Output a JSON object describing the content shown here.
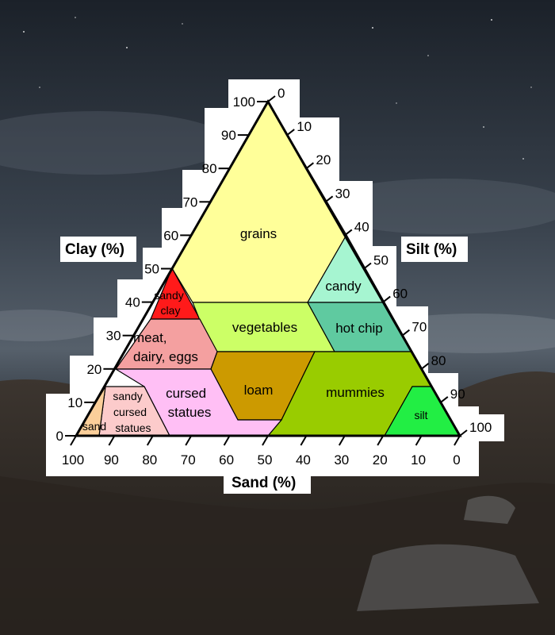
{
  "diagram": {
    "axes": {
      "clay": {
        "title": "Clay (%)",
        "ticks": [
          "0",
          "10",
          "20",
          "30",
          "40",
          "50",
          "60",
          "70",
          "80",
          "90",
          "100"
        ]
      },
      "silt": {
        "title": "Silt (%)",
        "ticks": [
          "0",
          "10",
          "20",
          "30",
          "40",
          "50",
          "60",
          "70",
          "80",
          "90",
          "100"
        ]
      },
      "sand": {
        "title": "Sand (%)",
        "ticks": [
          "100",
          "90",
          "80",
          "70",
          "60",
          "50",
          "40",
          "30",
          "20",
          "10",
          "0"
        ]
      }
    },
    "regions": [
      {
        "key": "grains",
        "label_lines": [
          "grains"
        ],
        "color": "#ffff99"
      },
      {
        "key": "candy",
        "label_lines": [
          "candy"
        ],
        "color": "#a6f5d1"
      },
      {
        "key": "sandy_clay",
        "label_lines": [
          "sandy",
          "clay"
        ],
        "color": "#ff1a1a"
      },
      {
        "key": "vegetables",
        "label_lines": [
          "vegetables"
        ],
        "color": "#ccff66"
      },
      {
        "key": "hot_chip",
        "label_lines": [
          "hot chip"
        ],
        "color": "#5fcaa0"
      },
      {
        "key": "meat_dairy_eggs",
        "label_lines": [
          "meat,",
          "dairy, eggs"
        ],
        "color": "#f4a0a0"
      },
      {
        "key": "loam",
        "label_lines": [
          "loam"
        ],
        "color": "#cc9a00"
      },
      {
        "key": "mummies",
        "label_lines": [
          "mummies"
        ],
        "color": "#99cc00"
      },
      {
        "key": "cursed_statues",
        "label_lines": [
          "cursed",
          "statues"
        ],
        "color": "#ffbff5"
      },
      {
        "key": "sandy_cursed_statues",
        "label_lines": [
          "sandy",
          "cursed",
          "statues"
        ],
        "color": "#fccbcb"
      },
      {
        "key": "sand",
        "label_lines": [
          "sand"
        ],
        "color": "#fbcf9a"
      },
      {
        "key": "silt",
        "label_lines": [
          "silt"
        ],
        "color": "#22ee44"
      }
    ]
  }
}
